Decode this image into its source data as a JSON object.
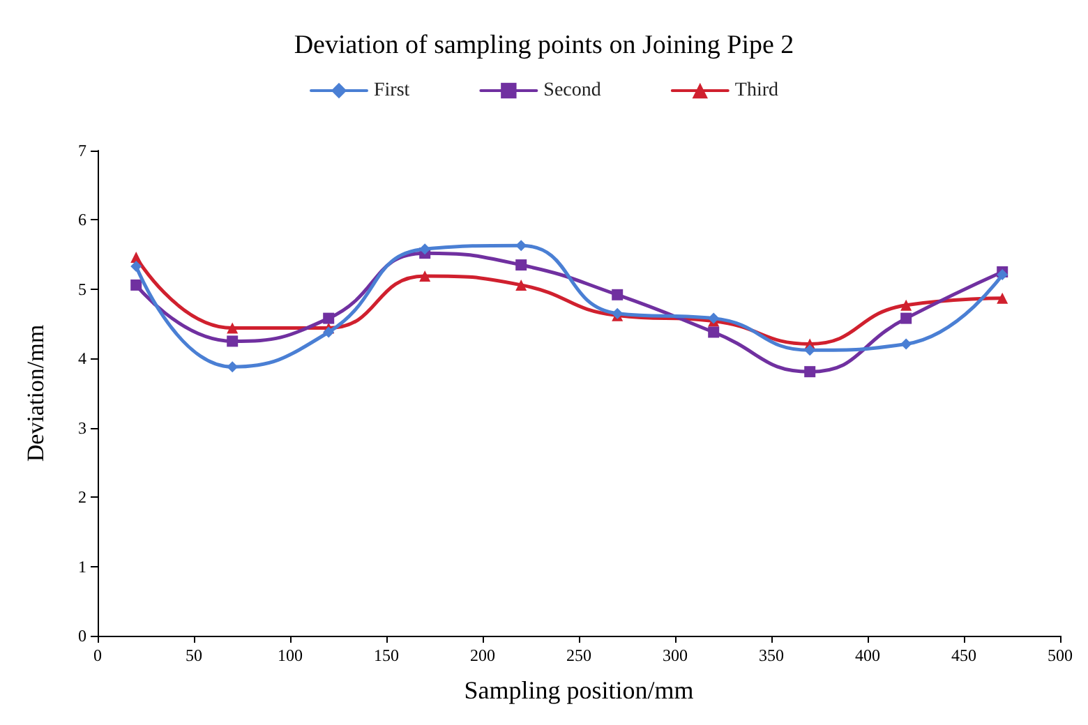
{
  "chart_data": {
    "type": "line",
    "title": "Deviation of sampling points on Joining Pipe 2",
    "xlabel": "Sampling position/mm",
    "ylabel": "Deviation/mm",
    "x": [
      20,
      70,
      120,
      170,
      220,
      270,
      320,
      370,
      420,
      470
    ],
    "series": [
      {
        "name": "First",
        "color": "#4a7fd4",
        "marker": "diamond",
        "values": [
          5.33,
          3.88,
          4.38,
          5.58,
          5.63,
          4.65,
          4.58,
          4.12,
          4.21,
          5.21
        ]
      },
      {
        "name": "Second",
        "color": "#7030a0",
        "marker": "square",
        "values": [
          5.06,
          4.25,
          4.58,
          5.52,
          5.35,
          4.92,
          4.38,
          3.81,
          4.58,
          5.25
        ]
      },
      {
        "name": "Third",
        "color": "#d0202e",
        "marker": "triangle",
        "values": [
          5.46,
          4.44,
          4.44,
          5.19,
          5.06,
          4.62,
          4.54,
          4.21,
          4.77,
          4.87
        ]
      }
    ],
    "xlim": [
      0,
      500
    ],
    "xticks": [
      0,
      50,
      100,
      150,
      200,
      250,
      300,
      350,
      400,
      450,
      500
    ],
    "ylim": [
      0,
      7
    ],
    "yticks": [
      0,
      1,
      2,
      3,
      4,
      5,
      6,
      7
    ],
    "grid": false,
    "legend": "top",
    "line_style": "solid"
  }
}
